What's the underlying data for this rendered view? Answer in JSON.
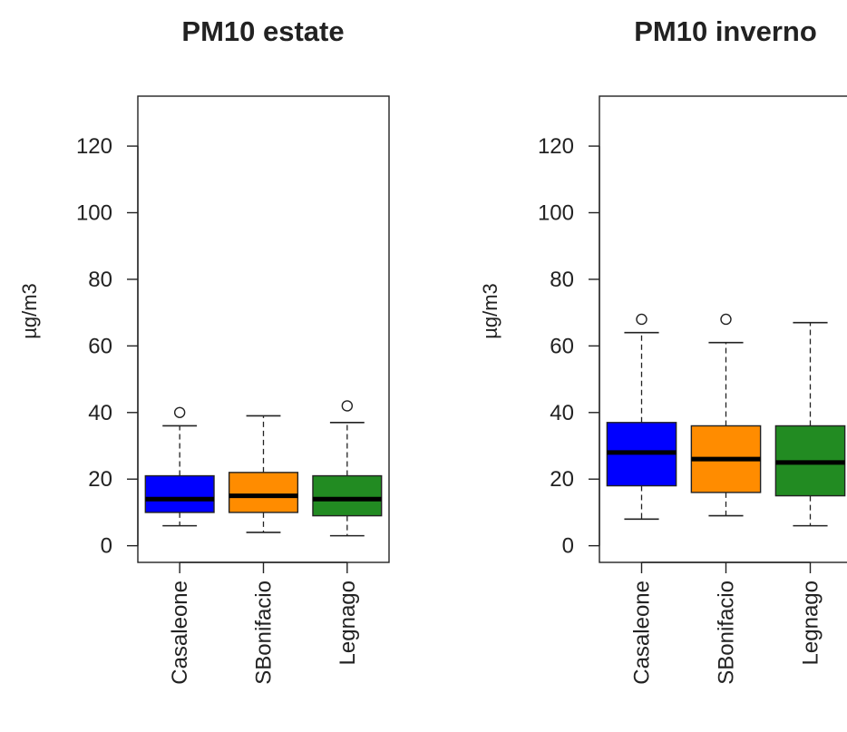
{
  "chart_data": [
    {
      "type": "boxplot",
      "title": "PM10 estate",
      "ylabel": "µg/m3",
      "xlabel": "",
      "ylim": [
        -5,
        135
      ],
      "yticks": [
        0,
        20,
        40,
        60,
        80,
        100,
        120
      ],
      "categories": [
        "Casaleone",
        "SBonifacio",
        "Legnago"
      ],
      "colors": [
        "#0000ff",
        "#ff8c00",
        "#228b22"
      ],
      "boxes": [
        {
          "whisker_low": 6,
          "q1": 10,
          "median": 14,
          "q3": 21,
          "whisker_high": 36,
          "outliers": [
            40
          ]
        },
        {
          "whisker_low": 4,
          "q1": 10,
          "median": 15,
          "q3": 22,
          "whisker_high": 39,
          "outliers": []
        },
        {
          "whisker_low": 3,
          "q1": 9,
          "median": 14,
          "q3": 21,
          "whisker_high": 37,
          "outliers": [
            42
          ]
        }
      ],
      "grid": false
    },
    {
      "type": "boxplot",
      "title": "PM10 inverno",
      "ylabel": "µg/m3",
      "xlabel": "",
      "ylim": [
        -5,
        135
      ],
      "yticks": [
        0,
        20,
        40,
        60,
        80,
        100,
        120
      ],
      "categories": [
        "Casaleone",
        "SBonifacio",
        "Legnago"
      ],
      "colors": [
        "#0000ff",
        "#ff8c00",
        "#228b22"
      ],
      "boxes": [
        {
          "whisker_low": 8,
          "q1": 18,
          "median": 28,
          "q3": 37,
          "whisker_high": 64,
          "outliers": [
            68
          ]
        },
        {
          "whisker_low": 9,
          "q1": 16,
          "median": 26,
          "q3": 36,
          "whisker_high": 61,
          "outliers": [
            68
          ]
        },
        {
          "whisker_low": 6,
          "q1": 15,
          "median": 25,
          "q3": 36,
          "whisker_high": 67,
          "outliers": []
        }
      ],
      "grid": false
    }
  ]
}
